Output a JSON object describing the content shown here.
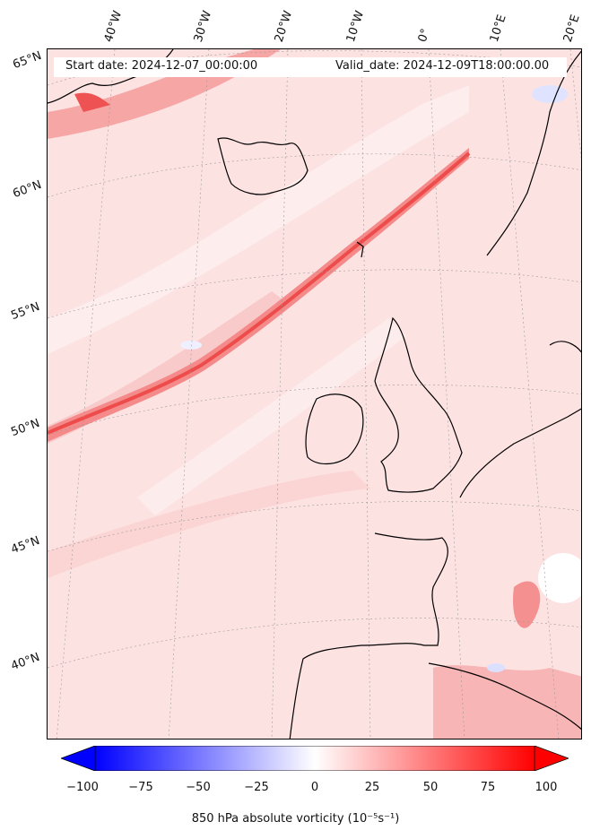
{
  "header": {
    "start_date": "Start date: 2024-12-07_00:00:00",
    "valid_date": "Valid_date: 2024-12-09T18:00:00.00"
  },
  "longitude_labels": [
    "40°W",
    "30°W",
    "20°W",
    "10°W",
    "0°",
    "10°E",
    "20°E"
  ],
  "latitude_labels": [
    "65°N",
    "60°N",
    "55°N",
    "50°N",
    "45°N",
    "40°N"
  ],
  "colorbar": {
    "ticks": [
      "−100",
      "−75",
      "−50",
      "−25",
      "0",
      "25",
      "50",
      "75",
      "100"
    ],
    "min": -100,
    "max": 100,
    "cmap": "bwr",
    "label": "850 hPa absolute vorticity (10⁻⁵s⁻¹)"
  },
  "colors": {
    "background_field": "#fde4e4",
    "low_vorticity": "#0000ff",
    "high_vorticity": "#ff0000",
    "coastline": "#000000"
  }
}
